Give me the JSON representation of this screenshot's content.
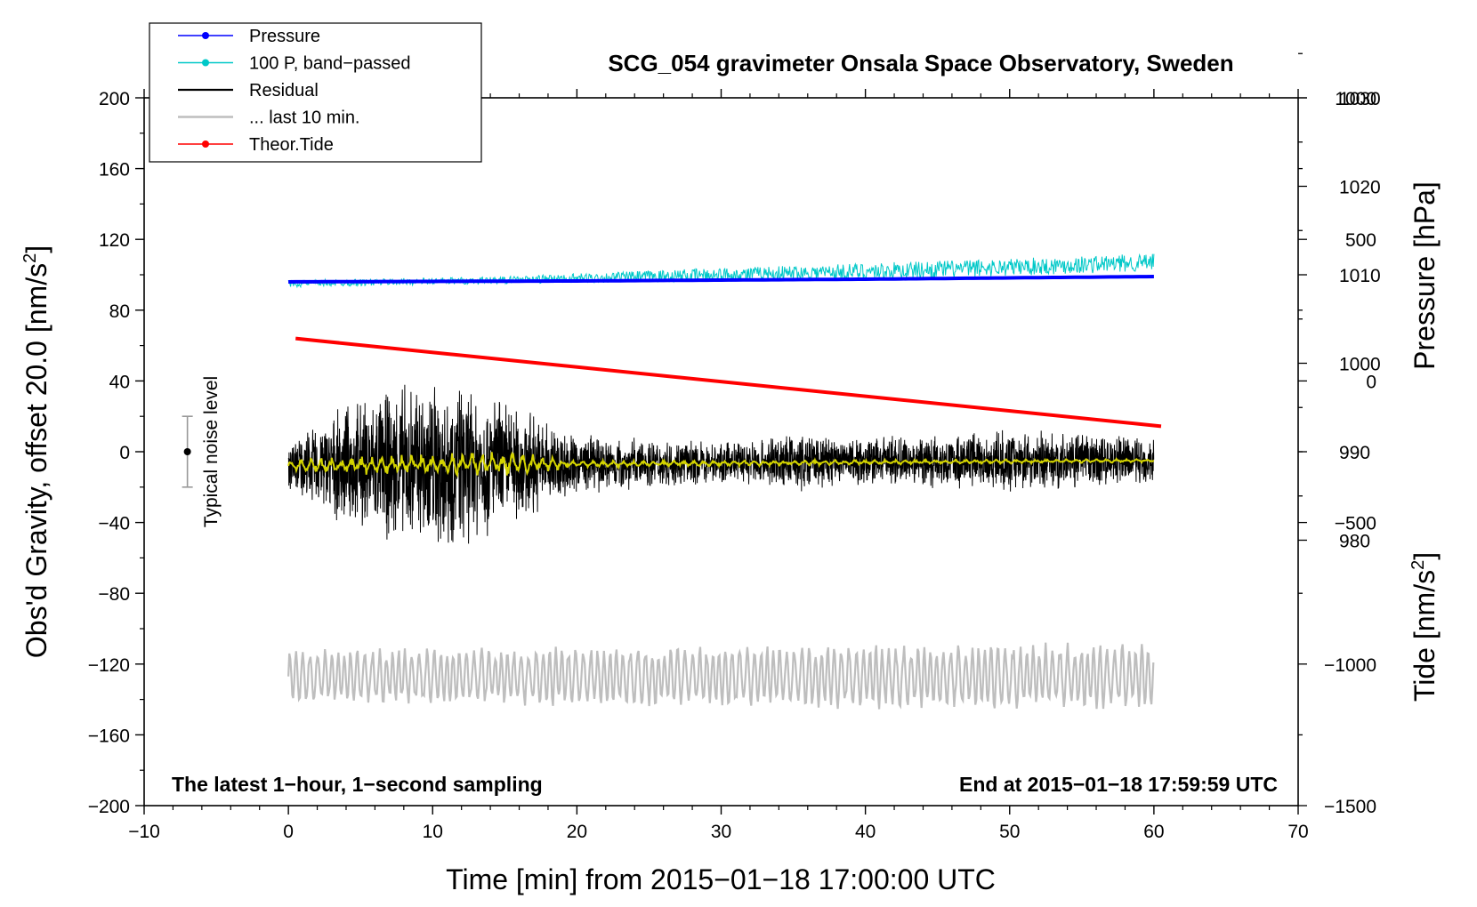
{
  "chart_data": {
    "type": "line",
    "title": "SCG_054 gravimeter Onsala Space Observatory, Sweden",
    "xlabel": "Time [min] from 2015−01−18 17:00:00 UTC",
    "ylabel": "Obs'd Gravity, offset 20.0 [nm/s²]",
    "ylabel_parts": {
      "main": "Obs'd Gravity, offset 20.0 [nm/s",
      "sup": "2",
      "end": "]"
    },
    "y2label": "Pressure [hPa]",
    "y3label_parts": {
      "main": "Tide [nm/s",
      "sup": "2",
      "end": "]"
    },
    "xlim": [
      -10,
      70
    ],
    "ylim": [
      -200,
      200
    ],
    "pressure_ylim": [
      950,
      1030
    ],
    "tide_ylim": [
      -1500,
      1000
    ],
    "x_ticks": [
      "−10",
      "0",
      "10",
      "20",
      "30",
      "40",
      "50",
      "60",
      "70"
    ],
    "x_tick_values": [
      -10,
      0,
      10,
      20,
      30,
      40,
      50,
      60,
      70
    ],
    "y_ticks": [
      "200",
      "160",
      "120",
      "80",
      "40",
      "0",
      "−40",
      "−80",
      "−120",
      "−160",
      "−200"
    ],
    "y_tick_values": [
      200,
      160,
      120,
      80,
      40,
      0,
      -40,
      -80,
      -120,
      -160,
      -200
    ],
    "pressure_ticks": [
      "1030",
      "1020",
      "1010",
      "1000",
      "990",
      "980"
    ],
    "pressure_tick_values": [
      1030,
      1020,
      1010,
      1000,
      990,
      980
    ],
    "tide_ticks": [
      "1000",
      "500",
      "0",
      "−500",
      "−1000",
      "−1500"
    ],
    "tide_tick_values": [
      1000,
      500,
      0,
      -500,
      -1000,
      -1500
    ],
    "legend": [
      {
        "label": "Pressure",
        "color": "#0000ff",
        "marker": true
      },
      {
        "label": "100 P, band−passed",
        "color": "#00c8c8",
        "marker": true
      },
      {
        "label": "Residual",
        "color": "#000000",
        "marker": false
      },
      {
        "label": "... last 10 min.",
        "color": "#bebebe",
        "marker": false
      },
      {
        "label": "Theor.Tide",
        "color": "#ff0000",
        "marker": true
      }
    ],
    "noise_label": "Typical noise level",
    "noise_bar": {
      "x": -7,
      "center": 0,
      "half_range": 20
    },
    "footnote_left": "The latest 1−hour, 1−second sampling",
    "footnote_right": "End at 2015−01−18 17:59:59 UTC",
    "series": [
      {
        "name": "Pressure",
        "axis": "pressure",
        "color": "#0000ff",
        "x": [
          0,
          20,
          40,
          60
        ],
        "values": [
          1009.2,
          1009.3,
          1009.5,
          1009.8
        ]
      },
      {
        "name": "100 P, band−passed",
        "axis": "gravity",
        "color": "#00c8c8",
        "x": [
          0,
          15,
          30,
          45,
          60
        ],
        "values": [
          95,
          97,
          100,
          103,
          107
        ],
        "amplitude": [
          2,
          2,
          4,
          5,
          5
        ]
      },
      {
        "name": "Residual",
        "axis": "gravity",
        "color": "#000000",
        "x": [
          0,
          5,
          10,
          15,
          20,
          30,
          35,
          40,
          50,
          60
        ],
        "values": [
          -8,
          -8,
          -8,
          -7,
          -7,
          -6,
          -6,
          -5,
          -5,
          -5
        ],
        "amplitude": [
          15,
          40,
          55,
          40,
          18,
          12,
          18,
          15,
          18,
          15
        ]
      },
      {
        "name": "Smoothed residual",
        "axis": "gravity",
        "color": "#d4d400",
        "x": [
          0,
          15,
          20,
          60
        ],
        "values": [
          -8,
          -7,
          -7,
          -5
        ],
        "amplitude": [
          4,
          8,
          2,
          1
        ]
      },
      {
        "name": "... last 10 min.",
        "axis": "gravity",
        "color": "#bebebe",
        "x": [
          0,
          60
        ],
        "values": [
          -127,
          -127
        ],
        "amplitude": [
          16,
          20
        ]
      },
      {
        "name": "Theor.Tide",
        "axis": "tide",
        "color": "#ff0000",
        "x": [
          0.5,
          60.5
        ],
        "values": [
          150,
          -160
        ]
      }
    ]
  }
}
